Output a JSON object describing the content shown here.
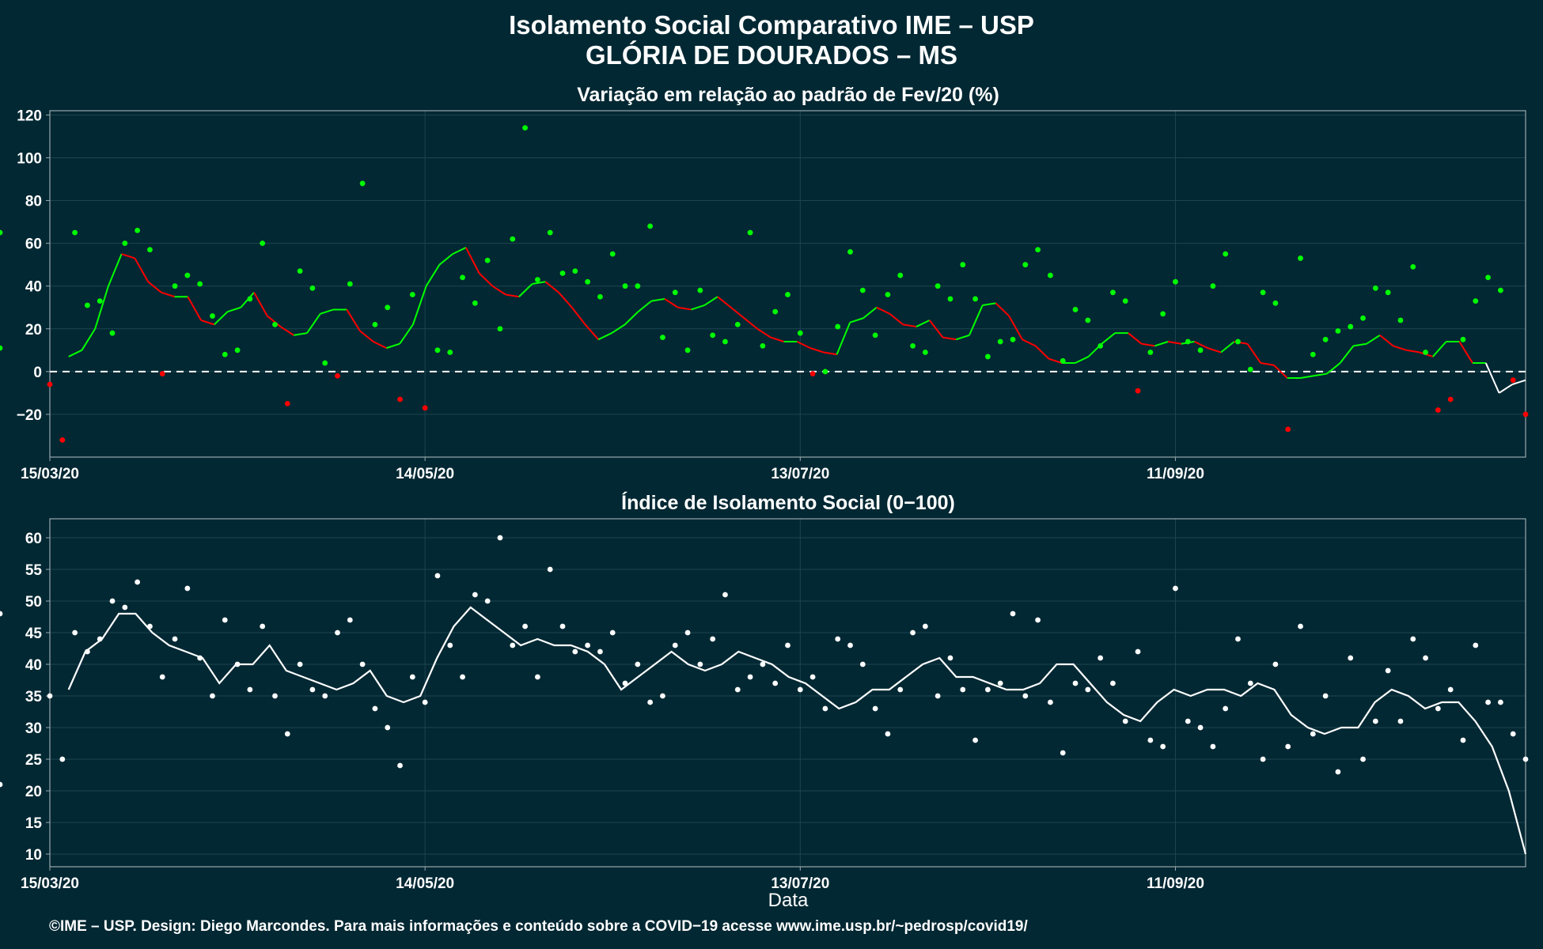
{
  "title_line1": "Isolamento Social Comparativo IME – USP",
  "title_line2": "GLÓRIA DE DOURADOS – MS",
  "footer": "©IME – USP. Design: Diego Marcondes. Para mais informações e conteúdo sobre a COVID−19 acesse www.ime.usp.br/~pedrosp/covid19/",
  "colors": {
    "background": "#022833",
    "positive": "#00ff00",
    "negative": "#ff0000",
    "index": "#ffffff",
    "grid": "#1d4550",
    "panel_border": "#9aa8ad"
  },
  "chart_data": [
    {
      "type": "scatter",
      "title": "Variação em relação ao padrão de Fev/20 (%)",
      "xlabel": "",
      "x_ticks": [
        "15/03/20",
        "14/05/20",
        "13/07/20",
        "11/09/20"
      ],
      "x_range": [
        "2020-03-15",
        "2020-11-07"
      ],
      "ylim": [
        -40,
        122
      ],
      "y_ticks": [
        -20,
        0,
        20,
        40,
        60,
        80,
        100,
        120
      ],
      "y_tick_labels": [
        "−20",
        "0",
        "20",
        "40",
        "60",
        "80",
        "100",
        "120"
      ],
      "reference_line": 0,
      "grid": true,
      "x": [
        0,
        2,
        4,
        6,
        8,
        10,
        12,
        14,
        16,
        18,
        20,
        22,
        24,
        26,
        28,
        30,
        32,
        34,
        36,
        38,
        40,
        42,
        44,
        46,
        48,
        50,
        52,
        54,
        56,
        58,
        60,
        62,
        64,
        66,
        68,
        70,
        72,
        74,
        76,
        78,
        80,
        82,
        84,
        86,
        88,
        90,
        92,
        94,
        96,
        98,
        100,
        102,
        104,
        106,
        108,
        110,
        112,
        114,
        116,
        118,
        120,
        122,
        124,
        126,
        128,
        130,
        132,
        134,
        136,
        138,
        140,
        142,
        144,
        146,
        148,
        150,
        152,
        154,
        156,
        158,
        160,
        162,
        164,
        166,
        168,
        170,
        172,
        174,
        176,
        178,
        180,
        182,
        184,
        186,
        188,
        190,
        192,
        194,
        196,
        198,
        200,
        202,
        204,
        206,
        208,
        210,
        212,
        214,
        216,
        218,
        220,
        222,
        224,
        226,
        228,
        230,
        232,
        234,
        236
      ],
      "points": [
        -6,
        -32,
        65,
        31,
        33,
        18,
        60,
        66,
        57,
        -1,
        40,
        45,
        41,
        26,
        8,
        10,
        34,
        60,
        22,
        -15,
        47,
        39,
        4,
        -2,
        41,
        88,
        22,
        30,
        -13,
        36,
        -17,
        10,
        9,
        44,
        32,
        52,
        20,
        62,
        114,
        43,
        65,
        46,
        47,
        42,
        35,
        55,
        40,
        40,
        68,
        16,
        37,
        10,
        38,
        17,
        14,
        22,
        65,
        12,
        28,
        36,
        18,
        -1,
        0,
        21,
        56,
        38,
        17,
        36,
        45,
        12,
        9,
        40,
        34,
        50,
        34,
        7,
        14,
        15,
        50,
        57,
        45,
        5,
        29,
        24,
        12,
        37,
        33,
        -9,
        9,
        27,
        42,
        14,
        10,
        40,
        55,
        14,
        1,
        37,
        32,
        -27,
        53,
        8,
        15,
        19,
        21,
        25,
        39,
        37,
        24,
        49,
        9,
        -18,
        -13,
        15,
        33,
        44,
        38,
        -4,
        -20,
        11,
        65
      ],
      "avg7": [
        7,
        10,
        20,
        40,
        55,
        53,
        42,
        37,
        35,
        35,
        24,
        22,
        28,
        30,
        37,
        26,
        21,
        17,
        18,
        27,
        29,
        29,
        19,
        14,
        11,
        13,
        22,
        40,
        50,
        55,
        58,
        46,
        40,
        36,
        35,
        41,
        42,
        37,
        30,
        22,
        15,
        18,
        22,
        28,
        33,
        34,
        30,
        29,
        31,
        35,
        30,
        25,
        20,
        16,
        14,
        14,
        11,
        9,
        8,
        23,
        25,
        30,
        27,
        22,
        21,
        24,
        16,
        15,
        17,
        31,
        32,
        26,
        15,
        12,
        6,
        4,
        4,
        7,
        13,
        18,
        18,
        13,
        12,
        14,
        13,
        14,
        11,
        9,
        14,
        13,
        4,
        3,
        -3,
        -3,
        -2,
        -1,
        4,
        12,
        13,
        17,
        12,
        10,
        9,
        7,
        14,
        14,
        4,
        4,
        -10,
        -6,
        -4
      ]
    },
    {
      "type": "scatter",
      "title": "Índice de Isolamento Social (0−100)",
      "xlabel": "Data",
      "x_ticks": [
        "15/03/20",
        "14/05/20",
        "13/07/20",
        "11/09/20"
      ],
      "x_range": [
        "2020-03-15",
        "2020-11-07"
      ],
      "ylim": [
        8,
        63
      ],
      "y_ticks": [
        10,
        15,
        20,
        25,
        30,
        35,
        40,
        45,
        50,
        55,
        60
      ],
      "grid": true,
      "x": [
        0,
        2,
        4,
        6,
        8,
        10,
        12,
        14,
        16,
        18,
        20,
        22,
        24,
        26,
        28,
        30,
        32,
        34,
        36,
        38,
        40,
        42,
        44,
        46,
        48,
        50,
        52,
        54,
        56,
        58,
        60,
        62,
        64,
        66,
        68,
        70,
        72,
        74,
        76,
        78,
        80,
        82,
        84,
        86,
        88,
        90,
        92,
        94,
        96,
        98,
        100,
        102,
        104,
        106,
        108,
        110,
        112,
        114,
        116,
        118,
        120,
        122,
        124,
        126,
        128,
        130,
        132,
        134,
        136,
        138,
        140,
        142,
        144,
        146,
        148,
        150,
        152,
        154,
        156,
        158,
        160,
        162,
        164,
        166,
        168,
        170,
        172,
        174,
        176,
        178,
        180,
        182,
        184,
        186,
        188,
        190,
        192,
        194,
        196,
        198,
        200,
        202,
        204,
        206,
        208,
        210,
        212,
        214,
        216,
        218,
        220,
        222,
        224,
        226,
        228,
        230,
        232,
        234,
        236
      ],
      "points": [
        35,
        25,
        45,
        42,
        44,
        50,
        49,
        53,
        46,
        38,
        44,
        52,
        41,
        35,
        47,
        40,
        36,
        46,
        35,
        29,
        40,
        36,
        35,
        45,
        47,
        40,
        33,
        30,
        24,
        38,
        34,
        54,
        43,
        38,
        51,
        50,
        60,
        43,
        46,
        38,
        55,
        46,
        42,
        43,
        42,
        45,
        37,
        40,
        34,
        35,
        43,
        45,
        40,
        44,
        51,
        36,
        38,
        40,
        37,
        43,
        36,
        38,
        33,
        44,
        43,
        40,
        33,
        29,
        36,
        45,
        46,
        35,
        41,
        36,
        28,
        36,
        37,
        48,
        35,
        47,
        34,
        26,
        37,
        36,
        41,
        37,
        31,
        42,
        28,
        27,
        52,
        31,
        30,
        27,
        33,
        44,
        37,
        25,
        40,
        27,
        46,
        29,
        35,
        23,
        41,
        25,
        31,
        39,
        31,
        44,
        41,
        33,
        36,
        28,
        43,
        34,
        34,
        29,
        25,
        21,
        48
      ]
    }
  ],
  "avg_index": [
    36,
    42,
    44,
    48,
    48,
    45,
    43,
    42,
    41,
    37,
    40,
    40,
    43,
    39,
    38,
    37,
    36,
    37,
    39,
    35,
    34,
    35,
    41,
    46,
    49,
    47,
    45,
    43,
    44,
    43,
    43,
    42,
    40,
    36,
    38,
    40,
    42,
    40,
    39,
    40,
    42,
    41,
    40,
    38,
    37,
    35,
    33,
    34,
    36,
    36,
    38,
    40,
    41,
    38,
    38,
    37,
    36,
    36,
    37,
    40,
    40,
    37,
    34,
    32,
    31,
    34,
    36,
    35,
    36,
    36,
    35,
    37,
    36,
    32,
    30,
    29,
    30,
    30,
    34,
    36,
    35,
    33,
    34,
    34,
    31,
    27,
    20,
    10
  ]
}
